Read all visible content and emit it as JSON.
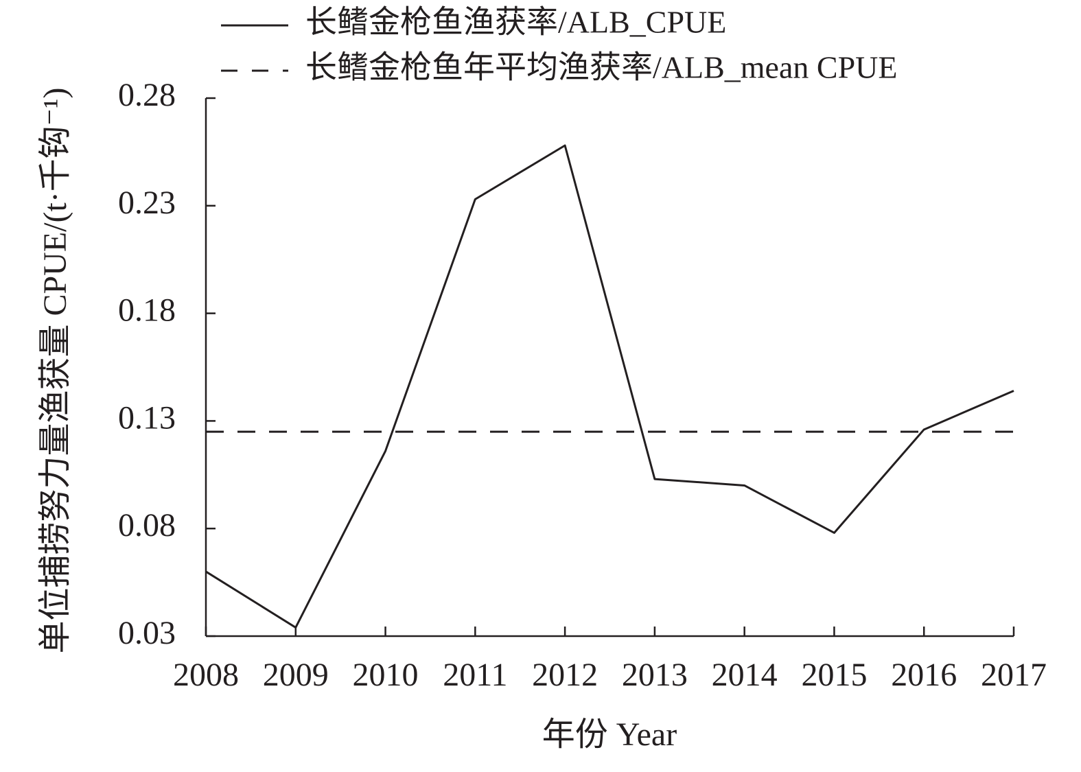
{
  "chart_data": {
    "type": "line",
    "x": [
      2008,
      2009,
      2010,
      2011,
      2012,
      2013,
      2014,
      2015,
      2016,
      2017
    ],
    "series": [
      {
        "name": "长鳍金枪鱼渔获率/ALB_CPUE",
        "color": "#231f20",
        "dash": false,
        "values": [
          0.06,
          0.034,
          0.116,
          0.233,
          0.258,
          0.103,
          0.1,
          0.078,
          0.126,
          0.144
        ]
      },
      {
        "name": "长鳍金枪鱼年平均渔获率/ALB_mean CPUE",
        "color": "#231f20",
        "dash": true,
        "values": [
          0.125,
          0.125,
          0.125,
          0.125,
          0.125,
          0.125,
          0.125,
          0.125,
          0.125,
          0.125
        ]
      }
    ],
    "xlabel": "年份 Year",
    "ylabel": "单位捕捞努力量渔获量 CPUE/(t·千钩⁻¹)",
    "xlim": [
      2008,
      2017
    ],
    "xticks": [
      2008,
      2009,
      2010,
      2011,
      2012,
      2013,
      2014,
      2015,
      2016,
      2017
    ],
    "ylim": [
      0.03,
      0.28
    ],
    "yticks": [
      0.03,
      0.08,
      0.13,
      0.18,
      0.23,
      0.28
    ],
    "grid": false,
    "legend": "top"
  }
}
